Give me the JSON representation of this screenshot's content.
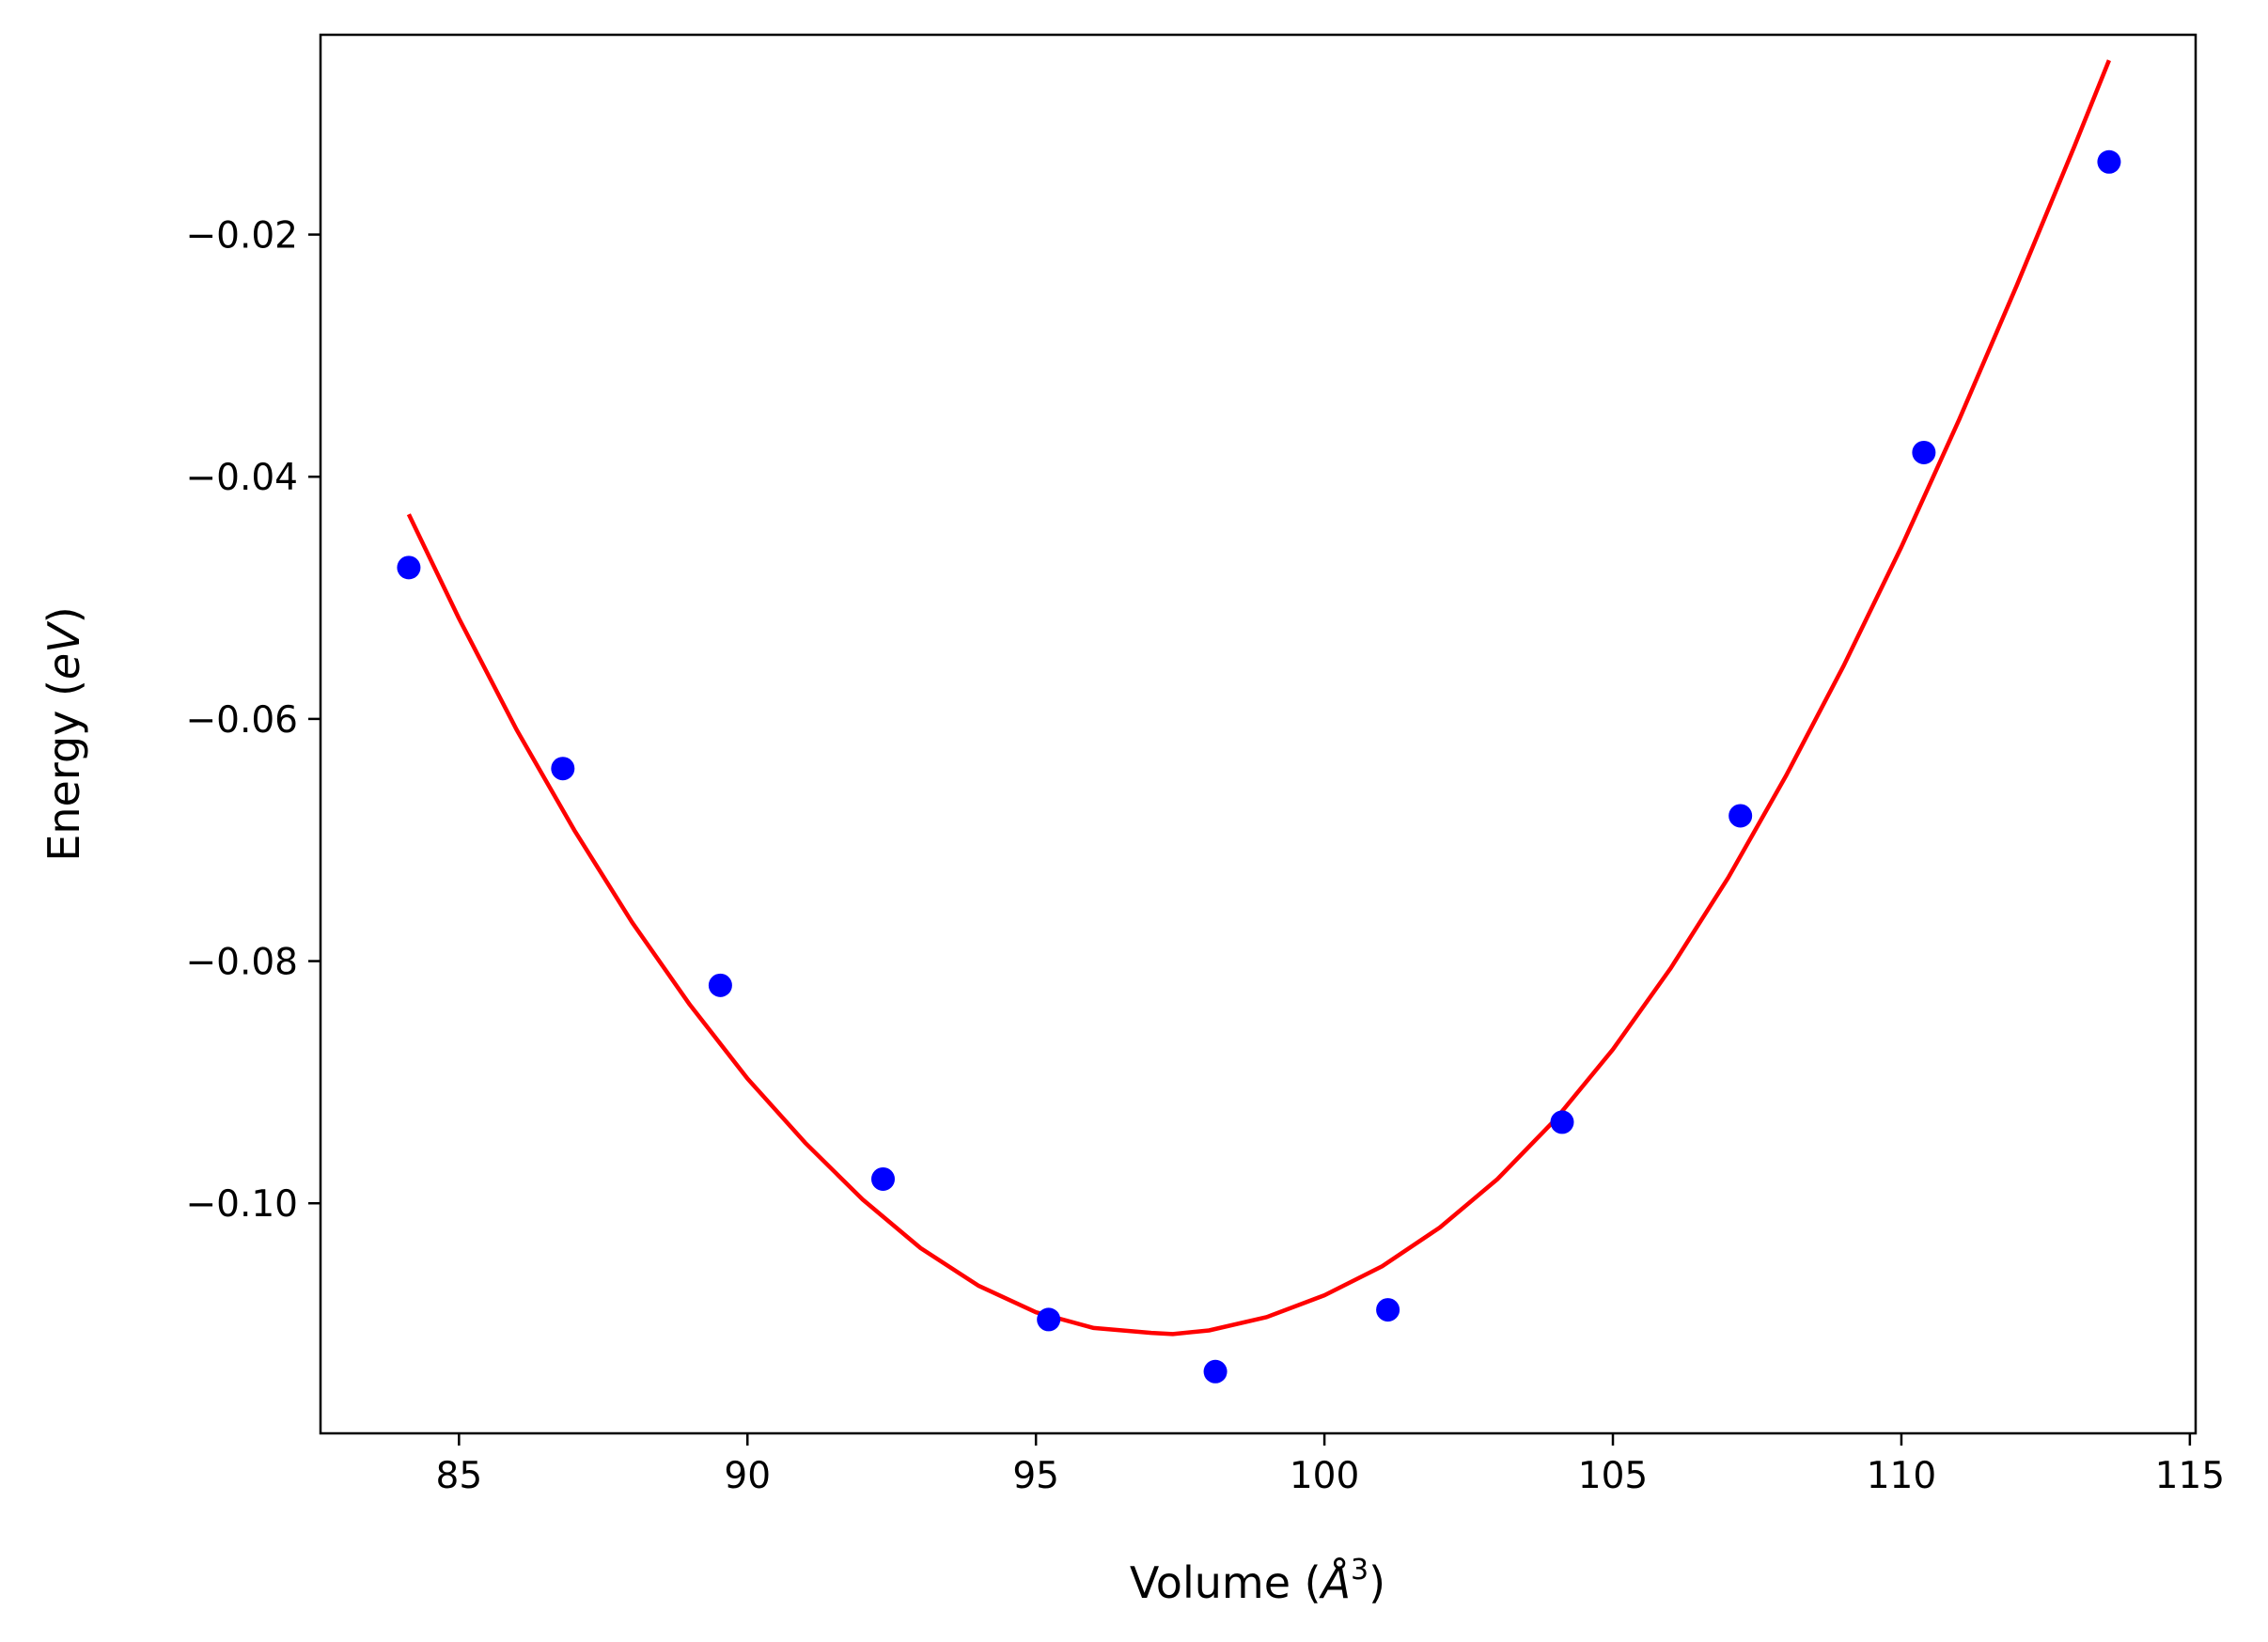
{
  "chart_data": {
    "type": "scatter",
    "xlabel": {
      "prefix": "Volume (",
      "symbol": "Å",
      "power": "3",
      "suffix": ")"
    },
    "ylabel": {
      "prefix": "Energy (",
      "unit": "eV",
      "suffix": ")"
    },
    "xlim": [
      82.6,
      115.1
    ],
    "ylim": [
      -0.119,
      -0.0035
    ],
    "xticks": [
      85,
      90,
      95,
      100,
      105,
      110,
      115
    ],
    "xtick_labels": [
      "85",
      "90",
      "95",
      "100",
      "105",
      "110",
      "115"
    ],
    "yticks": [
      -0.1,
      -0.08,
      -0.06,
      -0.04,
      -0.02
    ],
    "ytick_labels": [
      "−0.10",
      "−0.08",
      "−0.06",
      "−0.04",
      "−0.02"
    ],
    "grid": false,
    "legend": "none",
    "series": [
      {
        "kind": "points",
        "color": "#0000ff",
        "x": [
          84.13,
          86.8,
          89.53,
          92.35,
          95.22,
          98.11,
          101.1,
          104.12,
          107.21,
          110.39,
          113.6
        ],
        "y": [
          -0.0475,
          -0.0641,
          -0.082,
          -0.098,
          -0.1096,
          -0.1139,
          -0.1088,
          -0.0933,
          -0.068,
          -0.038,
          -0.014
        ]
      },
      {
        "kind": "fit-curve",
        "color": "#ff0000",
        "x": [
          84.13,
          85.0,
          86.0,
          87.0,
          88.0,
          89.0,
          90.0,
          91.0,
          92.0,
          93.0,
          94.0,
          95.0,
          96.0,
          97.0,
          97.37,
          98.0,
          99.0,
          100.0,
          101.0,
          102.0,
          103.0,
          104.0,
          105.0,
          106.0,
          107.0,
          108.0,
          109.0,
          110.0,
          111.0,
          112.0,
          113.0,
          113.6
        ],
        "y": [
          -0.0431,
          -0.0517,
          -0.0609,
          -0.0692,
          -0.0768,
          -0.0836,
          -0.0897,
          -0.095,
          -0.0997,
          -0.1037,
          -0.1068,
          -0.109,
          -0.1103,
          -0.1107,
          -0.1108,
          -0.1105,
          -0.1094,
          -0.1076,
          -0.1052,
          -0.102,
          -0.098,
          -0.0931,
          -0.0873,
          -0.0806,
          -0.0731,
          -0.0647,
          -0.0556,
          -0.0458,
          -0.0353,
          -0.0242,
          -0.0127,
          -0.0056
        ]
      }
    ]
  }
}
